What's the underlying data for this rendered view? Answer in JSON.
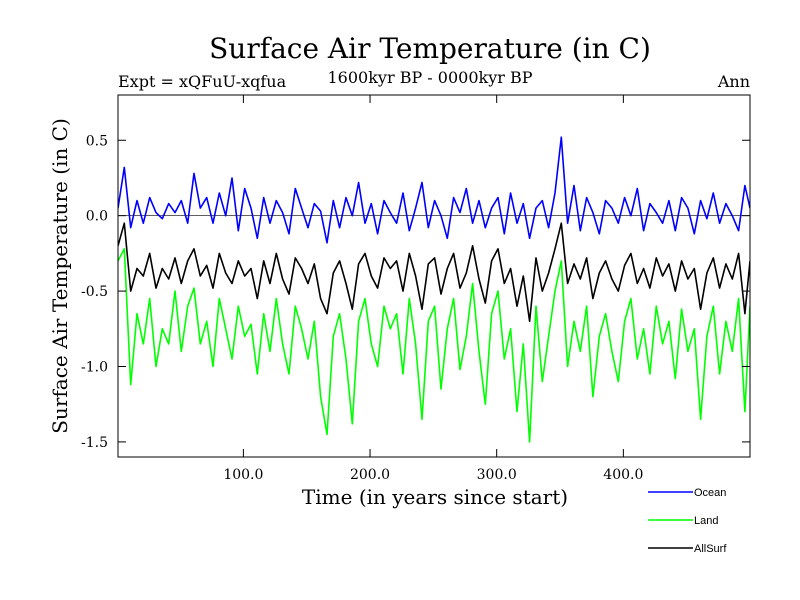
{
  "chart_data": {
    "type": "line",
    "title": "Surface Air Temperature (in C)",
    "subtitle": "1600kyr BP - 0000kyr BP",
    "expt_label": "Expt = xQFuU-xqfua",
    "season_label": "Ann",
    "xlabel": "Time (in years since start)",
    "ylabel": "Surface Air Temperature (in C)",
    "xlim": [
      1,
      500
    ],
    "ylim": [
      -1.6,
      0.8
    ],
    "xticks": [
      100,
      200,
      300,
      400
    ],
    "xtick_labels": [
      "100.0",
      "200.0",
      "300.0",
      "400.0"
    ],
    "yticks": [
      0.5,
      0.0,
      -0.5,
      -1.0,
      -1.5
    ],
    "ytick_labels": [
      "0.5",
      "0.0",
      "-0.5",
      "-1.0",
      "-1.5"
    ],
    "zero_line": true,
    "grid": false,
    "legend_position": "bottom-right",
    "x": [
      1,
      6,
      11,
      16,
      21,
      26,
      31,
      36,
      41,
      46,
      51,
      56,
      61,
      66,
      71,
      76,
      81,
      86,
      91,
      96,
      101,
      106,
      111,
      116,
      121,
      126,
      131,
      136,
      141,
      146,
      151,
      156,
      161,
      166,
      171,
      176,
      181,
      186,
      191,
      196,
      201,
      206,
      211,
      216,
      221,
      226,
      231,
      236,
      241,
      246,
      251,
      256,
      261,
      266,
      271,
      276,
      281,
      286,
      291,
      296,
      301,
      306,
      311,
      316,
      321,
      326,
      331,
      336,
      341,
      346,
      351,
      356,
      361,
      366,
      371,
      376,
      381,
      386,
      391,
      396,
      401,
      406,
      411,
      416,
      421,
      426,
      431,
      436,
      441,
      446,
      451,
      456,
      461,
      466,
      471,
      476,
      481,
      486,
      491,
      496,
      500
    ],
    "series": [
      {
        "name": "Ocean",
        "color": "#0000ff",
        "values": [
          0.05,
          0.32,
          -0.08,
          0.1,
          -0.05,
          0.12,
          0.02,
          -0.02,
          0.08,
          0.02,
          0.1,
          -0.05,
          0.28,
          0.05,
          0.12,
          -0.05,
          0.15,
          0.0,
          0.25,
          -0.1,
          0.18,
          0.05,
          -0.15,
          0.12,
          -0.05,
          0.1,
          0.02,
          -0.12,
          0.18,
          0.05,
          -0.08,
          0.08,
          0.03,
          -0.18,
          0.1,
          -0.08,
          0.12,
          0.0,
          0.22,
          -0.05,
          0.08,
          -0.12,
          0.1,
          0.02,
          -0.05,
          0.15,
          -0.1,
          0.05,
          0.22,
          -0.08,
          0.1,
          0.0,
          -0.15,
          0.12,
          0.02,
          0.18,
          -0.05,
          0.1,
          -0.08,
          0.05,
          0.12,
          -0.12,
          0.15,
          -0.05,
          0.08,
          -0.15,
          0.05,
          0.1,
          -0.08,
          0.15,
          0.52,
          -0.05,
          0.2,
          -0.1,
          0.12,
          0.02,
          -0.12,
          0.1,
          0.05,
          -0.05,
          0.12,
          0.0,
          0.18,
          -0.1,
          0.08,
          0.02,
          -0.05,
          0.1,
          -0.1,
          0.12,
          0.05,
          -0.12,
          0.1,
          -0.02,
          0.15,
          -0.05,
          0.08,
          0.0,
          -0.1,
          0.2,
          0.05
        ]
      },
      {
        "name": "Land",
        "color": "#00ff00",
        "values": [
          -0.3,
          -0.22,
          -1.12,
          -0.65,
          -0.85,
          -0.55,
          -1.0,
          -0.75,
          -0.85,
          -0.5,
          -0.9,
          -0.6,
          -0.48,
          -0.85,
          -0.7,
          -1.0,
          -0.55,
          -0.75,
          -0.95,
          -0.6,
          -0.8,
          -0.72,
          -1.05,
          -0.65,
          -0.9,
          -0.55,
          -0.85,
          -1.05,
          -0.6,
          -0.75,
          -0.95,
          -0.7,
          -1.2,
          -1.45,
          -0.8,
          -0.65,
          -0.95,
          -1.38,
          -0.7,
          -0.55,
          -0.85,
          -1.0,
          -0.6,
          -0.75,
          -0.65,
          -1.05,
          -0.55,
          -0.85,
          -1.35,
          -0.7,
          -0.6,
          -1.15,
          -0.75,
          -0.55,
          -1.02,
          -0.8,
          -0.45,
          -0.9,
          -1.25,
          -0.65,
          -0.5,
          -0.95,
          -0.75,
          -1.3,
          -0.85,
          -1.5,
          -0.6,
          -1.1,
          -0.8,
          -0.5,
          -0.3,
          -1.0,
          -0.7,
          -0.9,
          -0.6,
          -1.2,
          -0.8,
          -0.65,
          -0.9,
          -1.1,
          -0.7,
          -0.55,
          -0.95,
          -0.75,
          -1.05,
          -0.6,
          -0.85,
          -0.7,
          -1.08,
          -0.62,
          -0.9,
          -0.75,
          -1.35,
          -0.8,
          -0.6,
          -1.05,
          -0.7,
          -0.9,
          -0.55,
          -1.3,
          -0.6
        ]
      },
      {
        "name": "AllSurf",
        "color": "#000000",
        "values": [
          -0.2,
          -0.05,
          -0.5,
          -0.35,
          -0.4,
          -0.25,
          -0.48,
          -0.35,
          -0.42,
          -0.28,
          -0.45,
          -0.3,
          -0.22,
          -0.4,
          -0.33,
          -0.48,
          -0.25,
          -0.38,
          -0.45,
          -0.3,
          -0.4,
          -0.35,
          -0.55,
          -0.3,
          -0.45,
          -0.25,
          -0.42,
          -0.52,
          -0.28,
          -0.35,
          -0.45,
          -0.32,
          -0.55,
          -0.65,
          -0.38,
          -0.3,
          -0.45,
          -0.62,
          -0.32,
          -0.25,
          -0.4,
          -0.48,
          -0.28,
          -0.35,
          -0.3,
          -0.5,
          -0.25,
          -0.4,
          -0.62,
          -0.32,
          -0.28,
          -0.52,
          -0.35,
          -0.25,
          -0.48,
          -0.38,
          -0.2,
          -0.42,
          -0.58,
          -0.3,
          -0.22,
          -0.45,
          -0.35,
          -0.6,
          -0.4,
          -0.7,
          -0.28,
          -0.5,
          -0.38,
          -0.22,
          -0.05,
          -0.45,
          -0.32,
          -0.42,
          -0.28,
          -0.55,
          -0.38,
          -0.3,
          -0.42,
          -0.5,
          -0.33,
          -0.25,
          -0.45,
          -0.35,
          -0.48,
          -0.28,
          -0.4,
          -0.32,
          -0.5,
          -0.3,
          -0.42,
          -0.35,
          -0.62,
          -0.38,
          -0.28,
          -0.48,
          -0.32,
          -0.42,
          -0.25,
          -0.65,
          -0.3
        ]
      }
    ]
  }
}
